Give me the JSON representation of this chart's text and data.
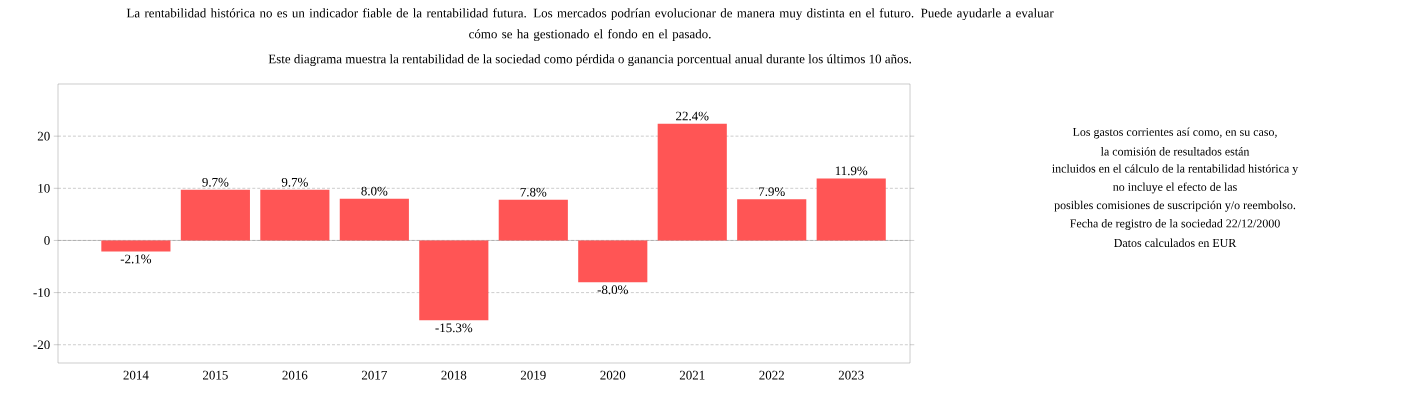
{
  "chart_data": {
    "type": "bar",
    "title": "La rentabilidad histórica no es un indicador fiable de la rentabilidad futura. Los mercados podrían evolucionar de manera muy distinta en el futuro. Puede ayudarle a evaluar cómo se ha gestionado el fondo en el pasado.",
    "subtitle": "Este diagrama muestra la rentabilidad de la sociedad como pérdida o ganancia porcentual anual durante los últimos 10 años.",
    "categories": [
      "2014",
      "2015",
      "2016",
      "2017",
      "2018",
      "2019",
      "2020",
      "2021",
      "2022",
      "2023"
    ],
    "values": [
      -2.1,
      9.7,
      9.7,
      8.0,
      -15.3,
      7.8,
      -8.0,
      22.4,
      7.9,
      11.9
    ],
    "value_labels": [
      "-2.1%",
      "9.7%",
      "9.7%",
      "8.0%",
      "-15.3%",
      "7.8%",
      "-8.0%",
      "22.4%",
      "7.9%",
      "11.9%"
    ],
    "color": "#ff5555",
    "ylim": [
      -23.5,
      30
    ],
    "yticks": [
      -20,
      -10,
      0,
      10,
      20
    ],
    "grid": "y",
    "annotations": [
      "Los gastos corrientes así como, en su caso,",
      "la comisión de resultados están",
      "incluidos en el cálculo de la rentabilidad histórica y",
      "no incluye el efecto de las",
      "posibles comisiones de suscripción y/o reembolso.",
      "Fecha de registro de la sociedad 22/12/2000",
      "Datos calculados en EUR"
    ]
  }
}
